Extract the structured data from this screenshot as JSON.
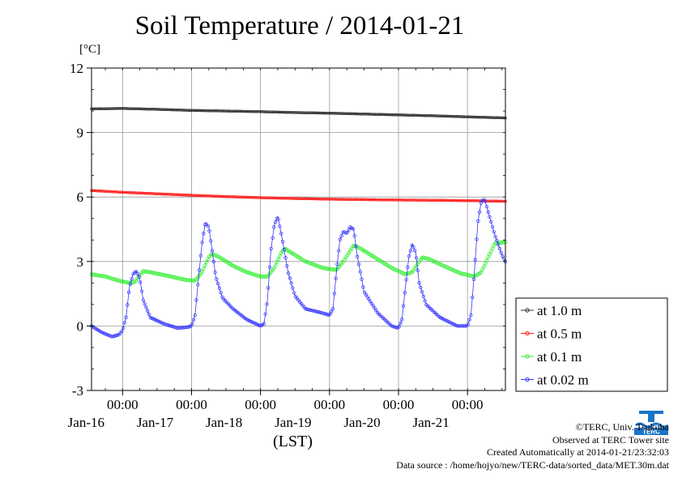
{
  "title": "Soil Temperature / 2014-01-21",
  "unit_label": "[°C]",
  "xlabel": "(LST)",
  "credits": {
    "copyright": "©TERC, Univ. Tsukuba",
    "site": "Observed at TERC Tower site",
    "created": "Created Automatically at 2014-01-21/23:32:03",
    "source": "Data source : /home/hojyo/new/TERC-data/sorted_data/MET.30m.dat"
  },
  "logo_text": "TERC",
  "colors": {
    "at_1_0": "#333333",
    "at_0_5": "#ff2020",
    "at_0_1": "#33ee33",
    "at_0_02": "#3333ff",
    "grid": "#999999"
  },
  "chart_data": {
    "type": "line",
    "ylim": [
      -3,
      12
    ],
    "yticks": [
      "12",
      "9",
      "6",
      "3",
      "0",
      "-3"
    ],
    "xlim": [
      -0.45,
      5.55
    ],
    "xticks": [
      {
        "x": 0,
        "time": "00:00",
        "date": "Jan-16"
      },
      {
        "x": 1,
        "time": "00:00",
        "date": "Jan-17"
      },
      {
        "x": 2,
        "time": "00:00",
        "date": "Jan-18"
      },
      {
        "x": 3,
        "time": "00:00",
        "date": "Jan-19"
      },
      {
        "x": 4,
        "time": "00:00",
        "date": "Jan-20"
      },
      {
        "x": 5,
        "time": "00:00",
        "date": "Jan-21"
      }
    ],
    "grid": true,
    "legend_position": "right",
    "series": [
      {
        "name": "at 1.0 m",
        "color": "#333333",
        "marker_size": 1.4,
        "points": [
          [
            -0.45,
            10.1
          ],
          [
            0,
            10.12
          ],
          [
            0.5,
            10.08
          ],
          [
            1,
            10.03
          ],
          [
            1.5,
            10.0
          ],
          [
            2,
            9.97
          ],
          [
            2.5,
            9.93
          ],
          [
            3,
            9.9
          ],
          [
            3.5,
            9.86
          ],
          [
            4,
            9.82
          ],
          [
            4.5,
            9.78
          ],
          [
            5,
            9.73
          ],
          [
            5.55,
            9.68
          ]
        ]
      },
      {
        "name": "at 0.5 m",
        "color": "#ff2020",
        "marker_size": 1.4,
        "points": [
          [
            -0.45,
            6.3
          ],
          [
            0,
            6.22
          ],
          [
            0.5,
            6.15
          ],
          [
            1,
            6.08
          ],
          [
            1.5,
            6.02
          ],
          [
            2,
            5.97
          ],
          [
            2.5,
            5.93
          ],
          [
            3,
            5.9
          ],
          [
            3.5,
            5.88
          ],
          [
            4,
            5.86
          ],
          [
            4.5,
            5.85
          ],
          [
            5,
            5.83
          ],
          [
            5.55,
            5.8
          ]
        ]
      },
      {
        "name": "at 0.1 m",
        "color": "#33ee33",
        "marker_size": 2.1,
        "points": [
          [
            -0.45,
            2.4
          ],
          [
            -0.25,
            2.3
          ],
          [
            -0.05,
            2.1
          ],
          [
            0.1,
            2.0
          ],
          [
            0.18,
            2.05
          ],
          [
            0.25,
            2.35
          ],
          [
            0.3,
            2.55
          ],
          [
            0.4,
            2.5
          ],
          [
            0.55,
            2.4
          ],
          [
            0.7,
            2.3
          ],
          [
            0.9,
            2.15
          ],
          [
            1.05,
            2.1
          ],
          [
            1.15,
            2.5
          ],
          [
            1.25,
            3.2
          ],
          [
            1.3,
            3.35
          ],
          [
            1.4,
            3.2
          ],
          [
            1.6,
            2.8
          ],
          [
            1.8,
            2.5
          ],
          [
            2.0,
            2.3
          ],
          [
            2.1,
            2.3
          ],
          [
            2.2,
            2.7
          ],
          [
            2.3,
            3.4
          ],
          [
            2.35,
            3.6
          ],
          [
            2.45,
            3.4
          ],
          [
            2.65,
            3.0
          ],
          [
            2.9,
            2.7
          ],
          [
            3.1,
            2.6
          ],
          [
            3.2,
            3.0
          ],
          [
            3.3,
            3.5
          ],
          [
            3.35,
            3.75
          ],
          [
            3.45,
            3.6
          ],
          [
            3.65,
            3.2
          ],
          [
            3.9,
            2.7
          ],
          [
            4.1,
            2.4
          ],
          [
            4.2,
            2.5
          ],
          [
            4.3,
            3.0
          ],
          [
            4.35,
            3.2
          ],
          [
            4.45,
            3.1
          ],
          [
            4.65,
            2.8
          ],
          [
            4.9,
            2.45
          ],
          [
            5.1,
            2.3
          ],
          [
            5.2,
            2.5
          ],
          [
            5.3,
            3.2
          ],
          [
            5.4,
            3.85
          ],
          [
            5.55,
            3.9
          ]
        ]
      },
      {
        "name": "at 0.02 m",
        "color": "#3333ff",
        "marker_size": 1.8,
        "points": [
          [
            -0.45,
            0.0
          ],
          [
            -0.3,
            -0.3
          ],
          [
            -0.15,
            -0.5
          ],
          [
            -0.05,
            -0.4
          ],
          [
            0.0,
            -0.2
          ],
          [
            0.05,
            0.4
          ],
          [
            0.1,
            1.8
          ],
          [
            0.15,
            2.4
          ],
          [
            0.2,
            2.55
          ],
          [
            0.25,
            2.2
          ],
          [
            0.3,
            1.2
          ],
          [
            0.4,
            0.4
          ],
          [
            0.6,
            0.1
          ],
          [
            0.8,
            -0.1
          ],
          [
            0.95,
            -0.05
          ],
          [
            1.0,
            0.0
          ],
          [
            1.05,
            0.5
          ],
          [
            1.1,
            2.2
          ],
          [
            1.15,
            3.8
          ],
          [
            1.2,
            4.8
          ],
          [
            1.25,
            4.6
          ],
          [
            1.3,
            3.5
          ],
          [
            1.35,
            2.3
          ],
          [
            1.45,
            1.3
          ],
          [
            1.6,
            0.8
          ],
          [
            1.8,
            0.3
          ],
          [
            2.0,
            0.0
          ],
          [
            2.05,
            0.1
          ],
          [
            2.1,
            1.2
          ],
          [
            2.15,
            3.5
          ],
          [
            2.2,
            4.7
          ],
          [
            2.25,
            5.1
          ],
          [
            2.3,
            4.3
          ],
          [
            2.4,
            2.5
          ],
          [
            2.5,
            1.4
          ],
          [
            2.65,
            0.8
          ],
          [
            2.9,
            0.6
          ],
          [
            3.0,
            0.5
          ],
          [
            3.05,
            0.8
          ],
          [
            3.1,
            2.5
          ],
          [
            3.15,
            4.0
          ],
          [
            3.2,
            4.4
          ],
          [
            3.25,
            4.3
          ],
          [
            3.3,
            4.6
          ],
          [
            3.35,
            4.5
          ],
          [
            3.4,
            3.3
          ],
          [
            3.5,
            1.6
          ],
          [
            3.7,
            0.6
          ],
          [
            3.9,
            0.0
          ],
          [
            4.0,
            -0.1
          ],
          [
            4.05,
            0.3
          ],
          [
            4.1,
            1.8
          ],
          [
            4.15,
            3.2
          ],
          [
            4.2,
            3.8
          ],
          [
            4.25,
            3.4
          ],
          [
            4.3,
            2.0
          ],
          [
            4.4,
            1.0
          ],
          [
            4.6,
            0.4
          ],
          [
            4.85,
            0.0
          ],
          [
            5.0,
            0.0
          ],
          [
            5.05,
            0.5
          ],
          [
            5.1,
            2.5
          ],
          [
            5.15,
            4.8
          ],
          [
            5.2,
            5.8
          ],
          [
            5.25,
            5.9
          ],
          [
            5.3,
            5.3
          ],
          [
            5.4,
            4.2
          ],
          [
            5.5,
            3.3
          ],
          [
            5.55,
            3.0
          ]
        ]
      }
    ]
  }
}
